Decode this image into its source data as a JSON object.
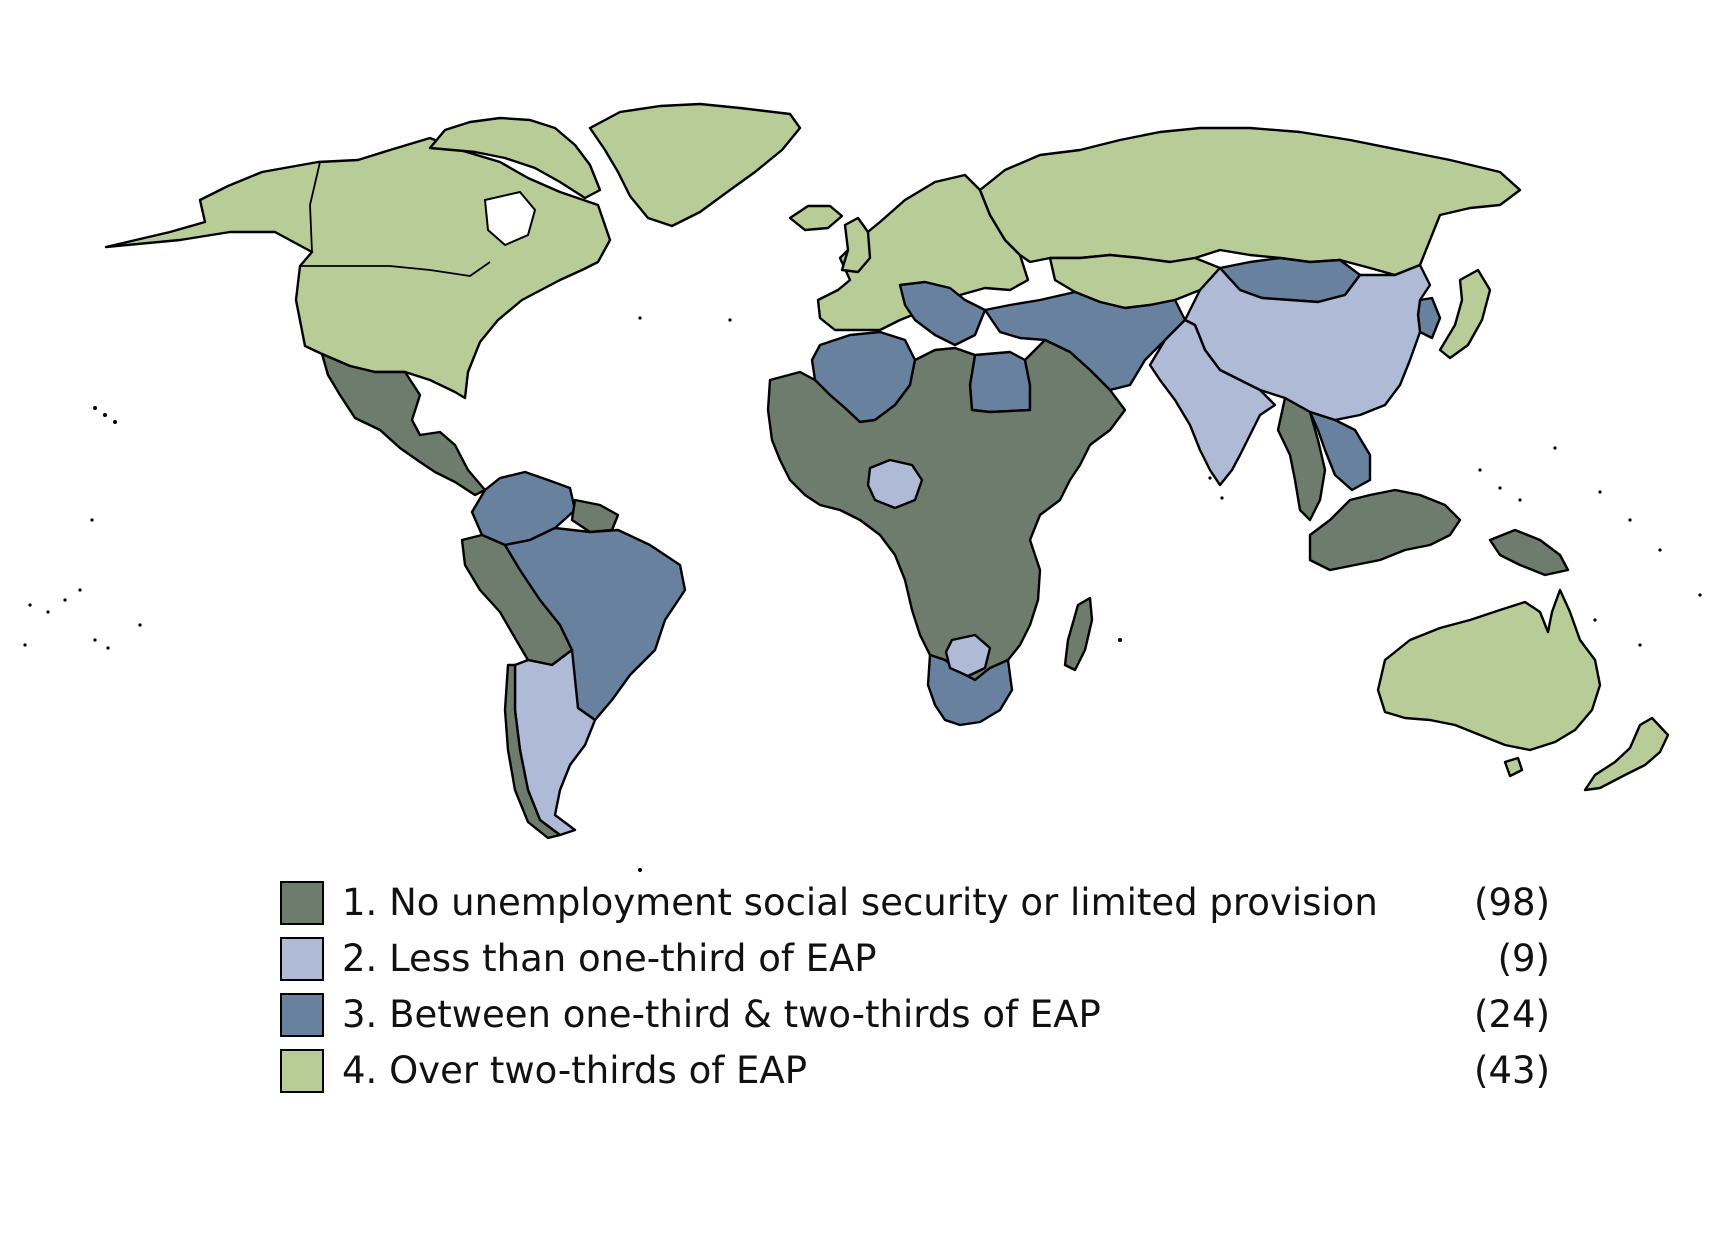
{
  "map": {
    "legend": [
      {
        "key": "cat1",
        "label": "1. No unemployment social security or limited provision",
        "count": "(98)",
        "color": "#6e7c6e"
      },
      {
        "key": "cat2",
        "label": "2. Less than one-third of EAP",
        "count": "(9)",
        "color": "#aebad6"
      },
      {
        "key": "cat3",
        "label": "3. Between one-third & two-thirds of EAP",
        "count": "(24)",
        "color": "#68819e"
      },
      {
        "key": "cat4",
        "label": "4. Over two-thirds of EAP",
        "count": "(43)",
        "color": "#b8cc98"
      }
    ],
    "regions": [
      {
        "name": "north-america-region",
        "category": "cat4"
      },
      {
        "name": "greenland-region",
        "category": "cat4"
      },
      {
        "name": "canadian-arctic-islands-region",
        "category": "cat4"
      },
      {
        "name": "mexico-central-america-region",
        "category": "cat1"
      },
      {
        "name": "northern-south-america-region",
        "category": "cat3"
      },
      {
        "name": "brazil-region",
        "category": "cat3"
      },
      {
        "name": "andean-region",
        "category": "cat1"
      },
      {
        "name": "argentina-region",
        "category": "cat2"
      },
      {
        "name": "guianas-region",
        "category": "cat1"
      },
      {
        "name": "western-europe-region",
        "category": "cat4"
      },
      {
        "name": "southeast-europe-region",
        "category": "cat3"
      },
      {
        "name": "russia-region",
        "category": "cat4"
      },
      {
        "name": "kazakhstan-region",
        "category": "cat4"
      },
      {
        "name": "maghreb-region",
        "category": "cat3"
      },
      {
        "name": "egypt-region",
        "category": "cat3"
      },
      {
        "name": "africa-middle-east-region",
        "category": "cat1"
      },
      {
        "name": "nigeria-region",
        "category": "cat2"
      },
      {
        "name": "southern-africa-region",
        "category": "cat3"
      },
      {
        "name": "botswana-region",
        "category": "cat2"
      },
      {
        "name": "madagascar-region",
        "category": "cat1"
      },
      {
        "name": "iran-turkey-region",
        "category": "cat3"
      },
      {
        "name": "mongolia-region",
        "category": "cat3"
      },
      {
        "name": "china-region",
        "category": "cat2"
      },
      {
        "name": "india-region",
        "category": "cat2"
      },
      {
        "name": "southeast-asia-region",
        "category": "cat1"
      },
      {
        "name": "indochina-region",
        "category": "cat3"
      },
      {
        "name": "japan-region",
        "category": "cat4"
      },
      {
        "name": "korea-region",
        "category": "cat3"
      },
      {
        "name": "indonesia-region",
        "category": "cat1"
      },
      {
        "name": "papua-region",
        "category": "cat1"
      },
      {
        "name": "australia-region",
        "category": "cat4"
      },
      {
        "name": "new-zealand-region",
        "category": "cat4"
      },
      {
        "name": "iceland-region",
        "category": "cat4"
      },
      {
        "name": "uk-region",
        "category": "cat4"
      }
    ]
  }
}
